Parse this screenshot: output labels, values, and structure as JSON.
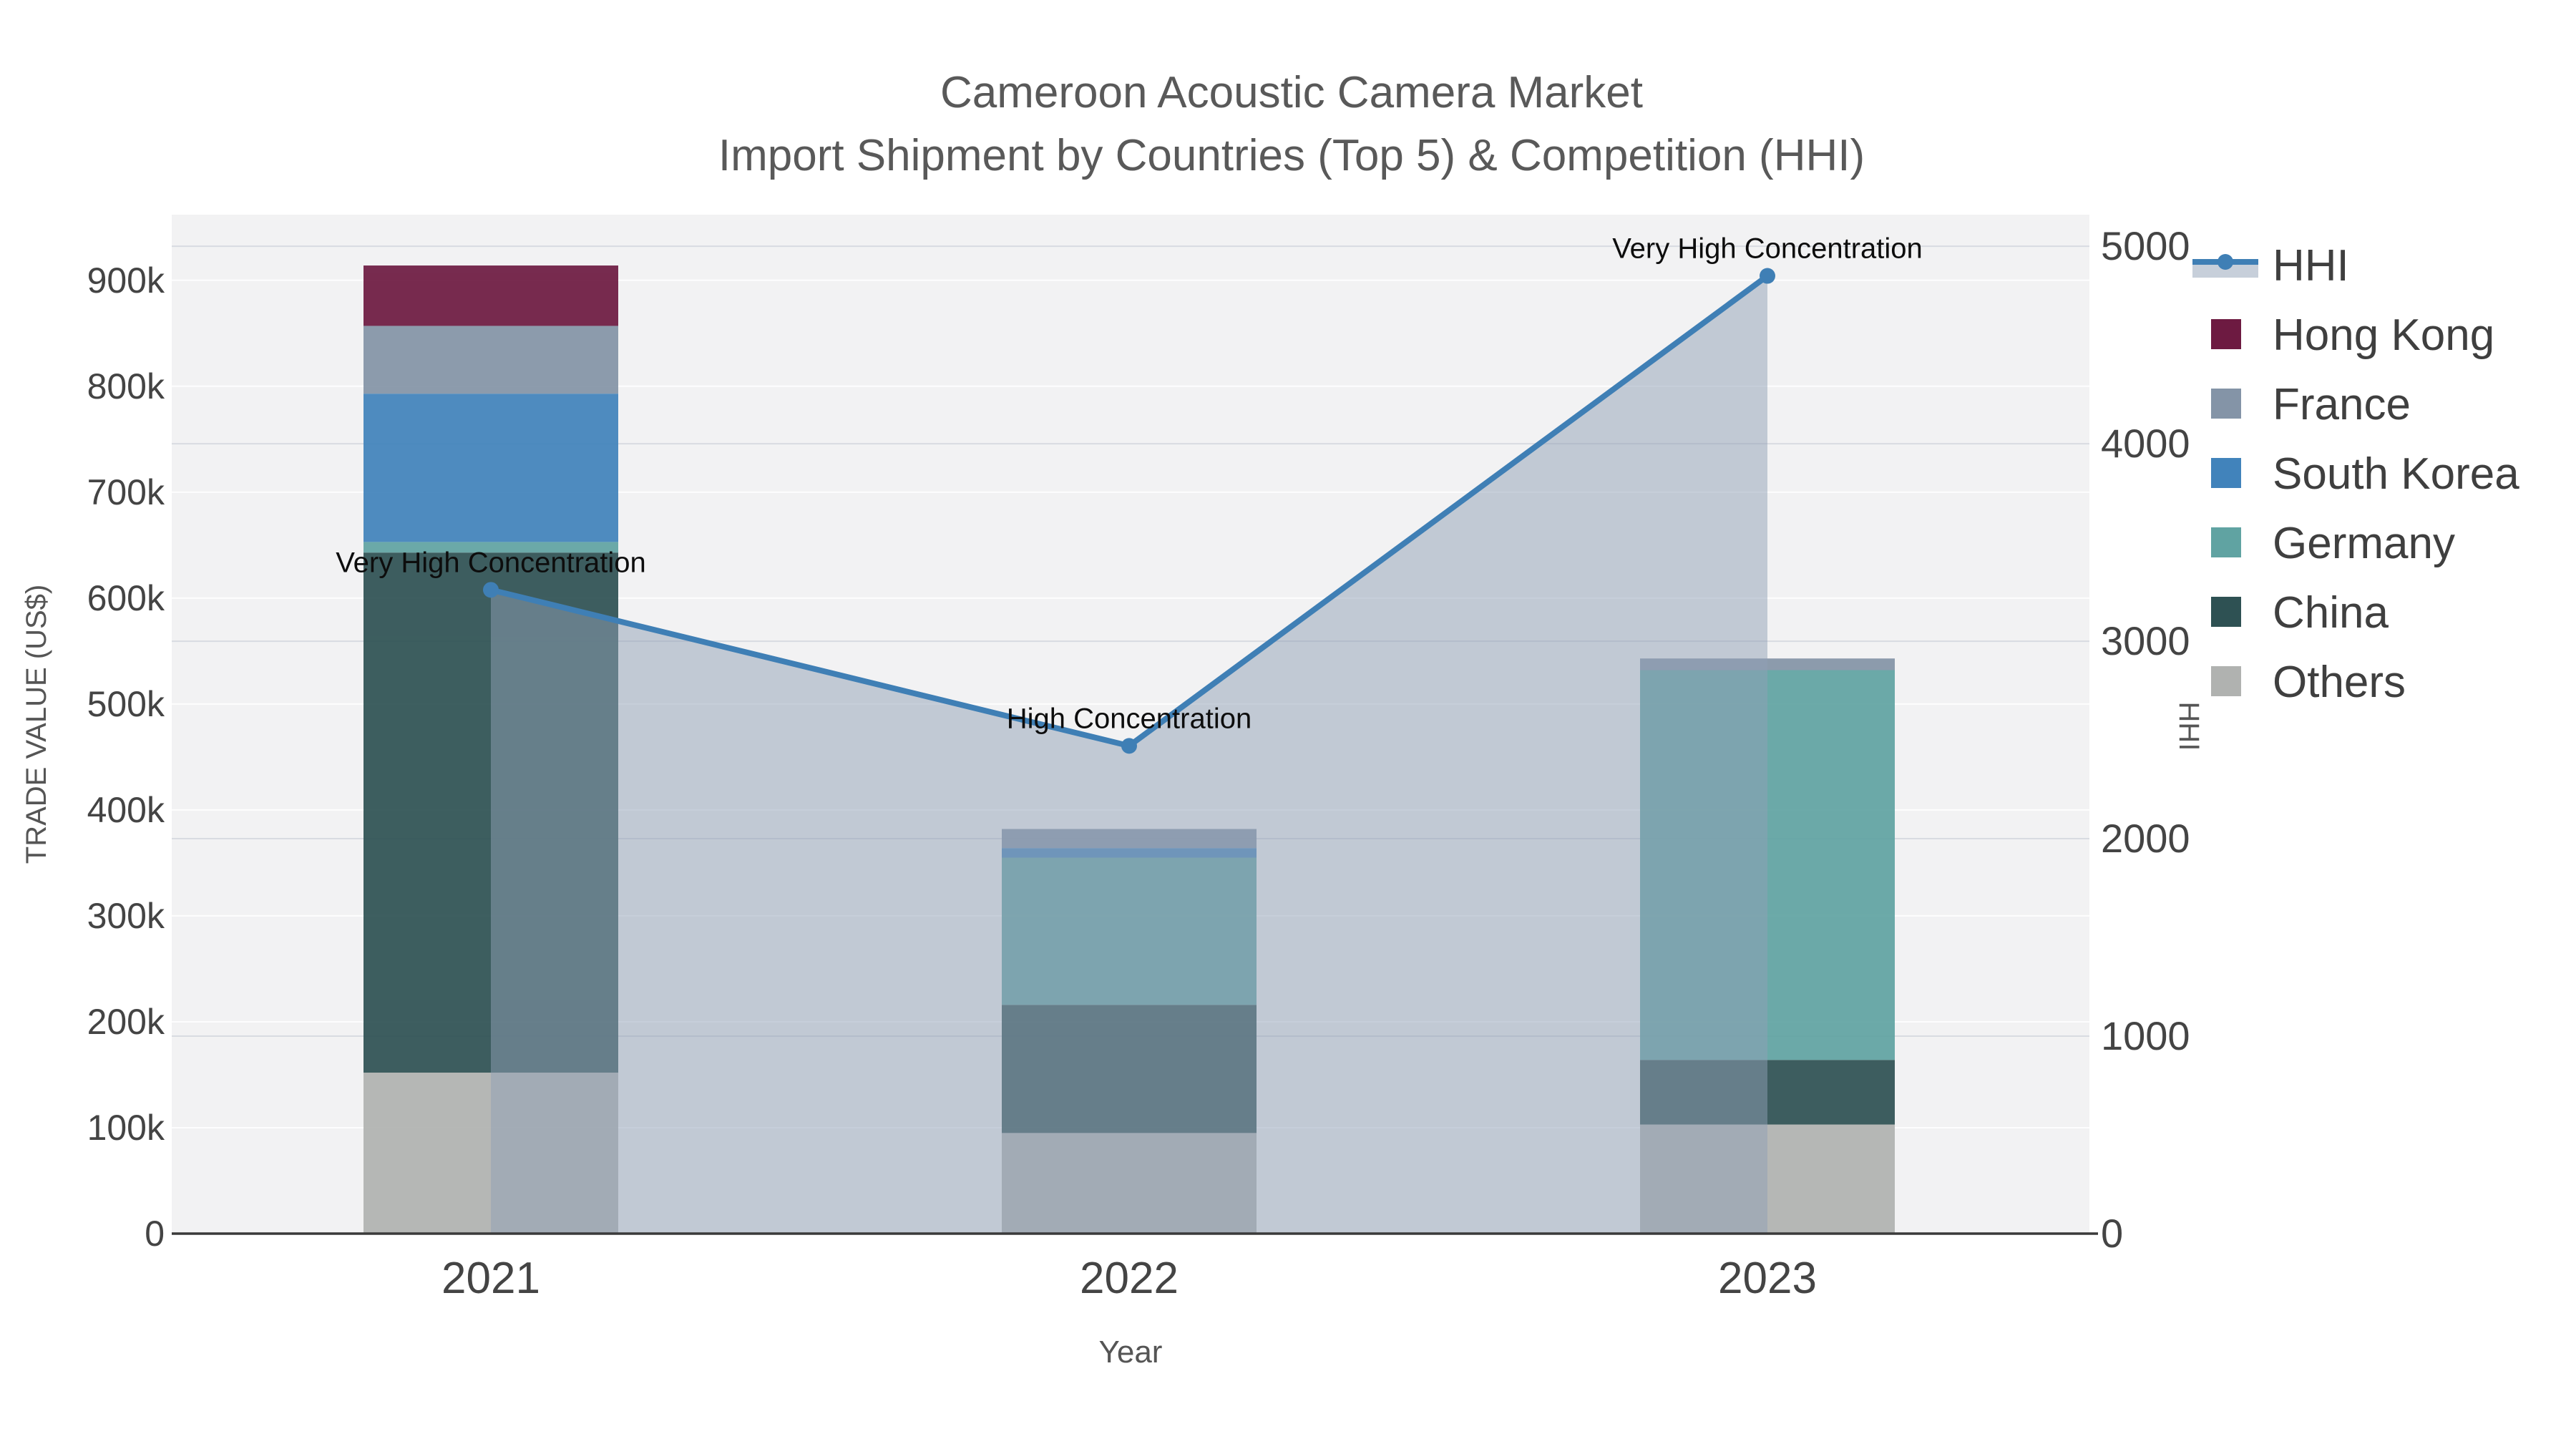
{
  "title": {
    "line1": "Cameroon Acoustic Camera Market",
    "line2": "Import Shipment by Countries (Top 5) & Competition (HHI)"
  },
  "chart_data": {
    "type": "stacked-bar+line",
    "categories": [
      "2021",
      "2022",
      "2023"
    ],
    "series": [
      {
        "name": "Others",
        "color": "#b0b2b0",
        "values": [
          152000,
          95000,
          103000
        ]
      },
      {
        "name": "China",
        "color": "#2e5153",
        "values": [
          491000,
          121000,
          61000
        ]
      },
      {
        "name": "Germany",
        "color": "#60a3a2",
        "values": [
          10000,
          139000,
          368000
        ]
      },
      {
        "name": "South Korea",
        "color": "#4183bb",
        "values": [
          140000,
          9000,
          0
        ]
      },
      {
        "name": "France",
        "color": "#8494a7",
        "values": [
          64000,
          18000,
          11000
        ]
      },
      {
        "name": "Hong Kong",
        "color": "#6d1a41",
        "values": [
          57000,
          0,
          0
        ]
      }
    ],
    "line_series": {
      "name": "HHI",
      "values": [
        3260,
        2470,
        4850
      ]
    },
    "annotations": [
      {
        "category": "2021",
        "text": "Very High Concentration"
      },
      {
        "category": "2022",
        "text": "High Concentration"
      },
      {
        "category": "2023",
        "text": "Very High Concentration"
      }
    ],
    "y_left": {
      "label": "TRADE VALUE (US$)",
      "min": 0,
      "max": 962000,
      "ticks": [
        0,
        100000,
        200000,
        300000,
        400000,
        500000,
        600000,
        700000,
        800000,
        900000
      ],
      "tick_labels": [
        "0",
        "100k",
        "200k",
        "300k",
        "400k",
        "500k",
        "600k",
        "700k",
        "800k",
        "900k"
      ]
    },
    "y_right": {
      "label": "HHI",
      "min": 0,
      "max": 5160,
      "ticks": [
        0,
        1000,
        2000,
        3000,
        4000,
        5000
      ],
      "tick_labels": [
        "0",
        "1000",
        "2000",
        "3000",
        "4000",
        "5000"
      ]
    },
    "x_label": "Year",
    "grid": true,
    "legend_position": "right",
    "colors": {
      "hhi_line": "#3f7fb5",
      "area_fill": "rgba(144,159,181,0.5)",
      "plot_bg": "#f2f2f3",
      "grid_left": "#fdfdfe",
      "grid_right": "#d8dbe1",
      "axis_line": "#3a3a3a",
      "tick_text": "#444444",
      "title_text": "#595959",
      "annotation_text": "#0d0d0d"
    }
  }
}
